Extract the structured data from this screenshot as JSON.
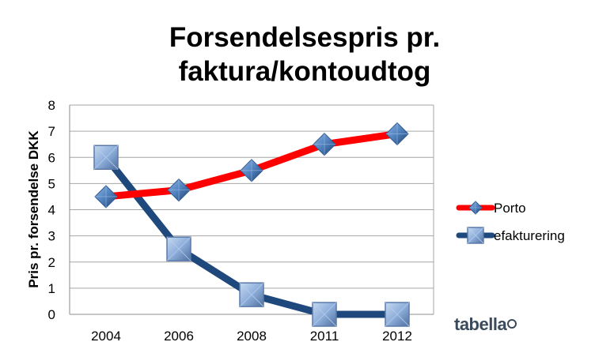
{
  "chart_data": {
    "type": "line",
    "title_lines": [
      "Forsendelsespris pr.",
      "faktura/kontoudtog"
    ],
    "ylabel": "Pris pr. forsendelse DKK",
    "xlabel": "",
    "categories": [
      "2004",
      "2006",
      "2008",
      "2011",
      "2012"
    ],
    "ylim": [
      0,
      8
    ],
    "yticks": [
      0,
      1,
      2,
      3,
      4,
      5,
      6,
      7,
      8
    ],
    "grid": true,
    "legend": "right",
    "series": [
      {
        "name": "Porto",
        "values": [
          4.5,
          4.75,
          5.5,
          6.5,
          6.9
        ],
        "color": "#ff0000",
        "marker": "diamond",
        "marker_color": "#4f81bd"
      },
      {
        "name": "efakturering",
        "values": [
          6.0,
          2.5,
          0.75,
          0.0,
          0.0
        ],
        "color": "#1f497d",
        "marker": "square",
        "marker_color": "#95b3d7"
      }
    ]
  },
  "logo": {
    "text": "tabella"
  }
}
